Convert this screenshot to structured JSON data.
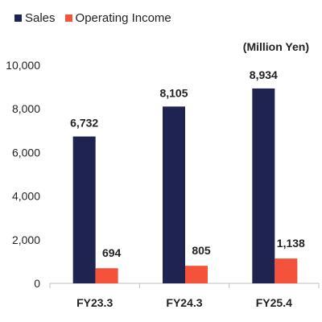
{
  "unit_label": "(Million Yen)",
  "colors": {
    "sales": "#1f2350",
    "operating_income": "#f4523b"
  },
  "chart_data": {
    "type": "bar",
    "title": "",
    "xlabel": "",
    "ylabel": "",
    "categories": [
      "FY23.3",
      "FY24.3",
      "FY25.4"
    ],
    "series": [
      {
        "name": "Sales",
        "values": [
          6732,
          8105,
          8934
        ],
        "labels": [
          "6,732",
          "8,105",
          "8,934"
        ]
      },
      {
        "name": "Operating Income",
        "values": [
          694,
          805,
          1138
        ],
        "labels": [
          "694",
          "805",
          "1,138"
        ]
      }
    ],
    "ylim": [
      0,
      10000
    ],
    "yticks": [
      0,
      2000,
      4000,
      6000,
      8000,
      10000
    ],
    "ytick_labels": [
      "0",
      "2,000",
      "4,000",
      "6,000",
      "8,000",
      "10,000"
    ],
    "legend_position": "top-left",
    "grid": false
  }
}
